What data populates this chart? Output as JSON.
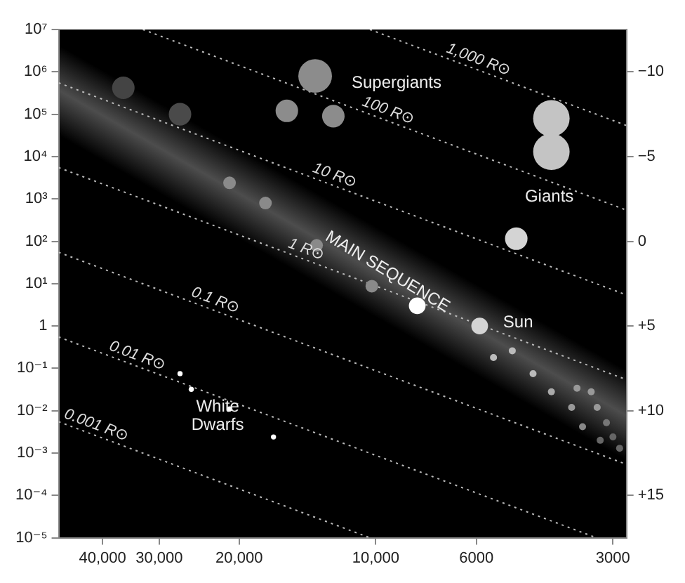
{
  "chart_data": {
    "type": "bubble",
    "xlim": [
      50000,
      2800
    ],
    "xticks": [
      {
        "value": 40000,
        "label": "40,000"
      },
      {
        "value": 30000,
        "label": "30,000"
      },
      {
        "value": 20000,
        "label": "20,000"
      },
      {
        "value": 10000,
        "label": "10,000"
      },
      6000,
      3000
    ],
    "ylim": [
      1e-05,
      10000000
    ],
    "yticks": [
      {
        "value": 1e-05,
        "label": "10⁻⁵"
      },
      {
        "value": 0.0001,
        "label": "10⁻⁴"
      },
      {
        "value": 0.001,
        "label": "10⁻³"
      },
      {
        "value": 0.01,
        "label": "10⁻²"
      },
      {
        "value": 0.1,
        "label": "10⁻¹"
      },
      1,
      {
        "value": 10,
        "label": "10¹"
      },
      {
        "value": 100,
        "label": "10²"
      },
      {
        "value": 1000,
        "label": "10³"
      },
      {
        "value": 10000,
        "label": "10⁴"
      },
      {
        "value": 100000,
        "label": "10⁵"
      },
      {
        "value": 1000000,
        "label": "10⁶"
      },
      {
        "value": 10000000,
        "label": "10⁷"
      }
    ],
    "y2lim": [
      17.5,
      -12.5
    ],
    "y2ticks": [
      {
        "value": -10,
        "label": "−10"
      },
      {
        "value": -5,
        "label": "−5"
      },
      0,
      {
        "value": 5,
        "label": "+5"
      },
      {
        "value": 10,
        "label": "+10"
      },
      {
        "value": 15,
        "label": "+15"
      }
    ],
    "log": "xy",
    "grid": false,
    "legend": false,
    "series": [
      {
        "x": [
          36000,
          27000,
          13600,
          15700,
          12400
        ],
        "values": [
          420000,
          100000,
          800000,
          120000,
          90000
        ],
        "sizes": [
          0.38,
          0.38,
          0.85,
          0.38,
          0.38
        ],
        "colors": [
          "#444444",
          "#4a4a4a",
          "#8c8c8c",
          "#8c8c8c",
          "#8c8c8c"
        ]
      },
      {
        "x": [
          4100,
          4100,
          4900
        ],
        "values": [
          80000,
          13000,
          115
        ],
        "sizes": [
          1,
          1,
          0.38
        ],
        "colors": [
          "#c4c4c4",
          "#c4c4c4",
          "#d4d4d4"
        ]
      },
      {
        "x": [
          21000,
          17500,
          13500,
          10200,
          8100,
          5900
        ],
        "values": [
          2400,
          800,
          80,
          8.7,
          3,
          1
        ],
        "sizes": [
          0.12,
          0.12,
          0.12,
          0.12,
          0.21,
          0.21
        ],
        "colors": [
          "#8a8a8a",
          "#8a8a8a",
          "#8a8a8a",
          "#8a8a8a",
          "#ffffff",
          "#d4d4d4"
        ]
      },
      {
        "x": [
          5500,
          5000,
          4500,
          4100,
          3600,
          3350,
          3700,
          3250,
          3500,
          3100,
          3200,
          3000,
          2900
        ],
        "values": [
          0.18,
          0.26,
          0.075,
          0.028,
          0.034,
          0.028,
          0.012,
          0.012,
          0.0042,
          0.0052,
          0.002,
          0.0024,
          0.0013
        ],
        "sizes": [
          0.037,
          0.037,
          0.037,
          0.037,
          0.037,
          0.037,
          0.037,
          0.037,
          0.037,
          0.037,
          0.037,
          0.037,
          0.037
        ],
        "colors": [
          "#bbbbbb",
          "#bbbbbb",
          "#bbbbbb",
          "#aaaaaa",
          "#999999",
          "#999999",
          "#999999",
          "#999999",
          "#888888",
          "#777777",
          "#666666",
          "#666666",
          "#666666"
        ]
      },
      {
        "x": [
          27000,
          25500,
          21000,
          16800
        ],
        "values": [
          0.075,
          0.032,
          0.011,
          0.0024
        ],
        "sizes": [
          0.02,
          0.02,
          0.02,
          0.02
        ],
        "colors": [
          "#ffffff",
          "#ffffff",
          "#ffffff",
          "#ffffff"
        ]
      },
      {
        "type": "line",
        "name": "1,000 R⊙",
        "color": "#bbbbbb",
        "line_style": "dotted",
        "x": [
          10300,
          2800
        ],
        "values": [
          10000000,
          54000
        ]
      },
      {
        "type": "line",
        "name": "100 R⊙",
        "color": "#bbbbbb",
        "line_style": "dotted",
        "x": [
          32600,
          2800
        ],
        "values": [
          10000000,
          543
        ]
      },
      {
        "type": "line",
        "name": "10 R⊙",
        "color": "#bbbbbb",
        "line_style": "dotted",
        "x": [
          50000,
          2800
        ],
        "values": [
          550000,
          5.4
        ]
      },
      {
        "type": "line",
        "name": "1 R⊙",
        "color": "#bbbbbb",
        "line_style": "dotted",
        "x": [
          50000,
          2800
        ],
        "values": [
          5500,
          0.054
        ]
      },
      {
        "type": "line",
        "name": "0.1 R⊙",
        "color": "#bbbbbb",
        "line_style": "dotted",
        "x": [
          50000,
          2800
        ],
        "values": [
          55,
          0.00054
        ]
      },
      {
        "type": "line",
        "name": "0.01 R⊙",
        "color": "#bbbbbb",
        "line_style": "dotted",
        "x": [
          50000,
          3262
        ],
        "values": [
          0.55,
          1e-05
        ]
      },
      {
        "type": "line",
        "name": "0.001 R⊙",
        "color": "#bbbbbb",
        "line_style": "dotted",
        "x": [
          50000,
          10300
        ],
        "values": [
          0.0055,
          1e-05
        ]
      }
    ],
    "annotations": [
      "Supergiants",
      "Giants",
      "MAIN SEQUENCE",
      "Sun",
      "White Dwarfs"
    ]
  }
}
